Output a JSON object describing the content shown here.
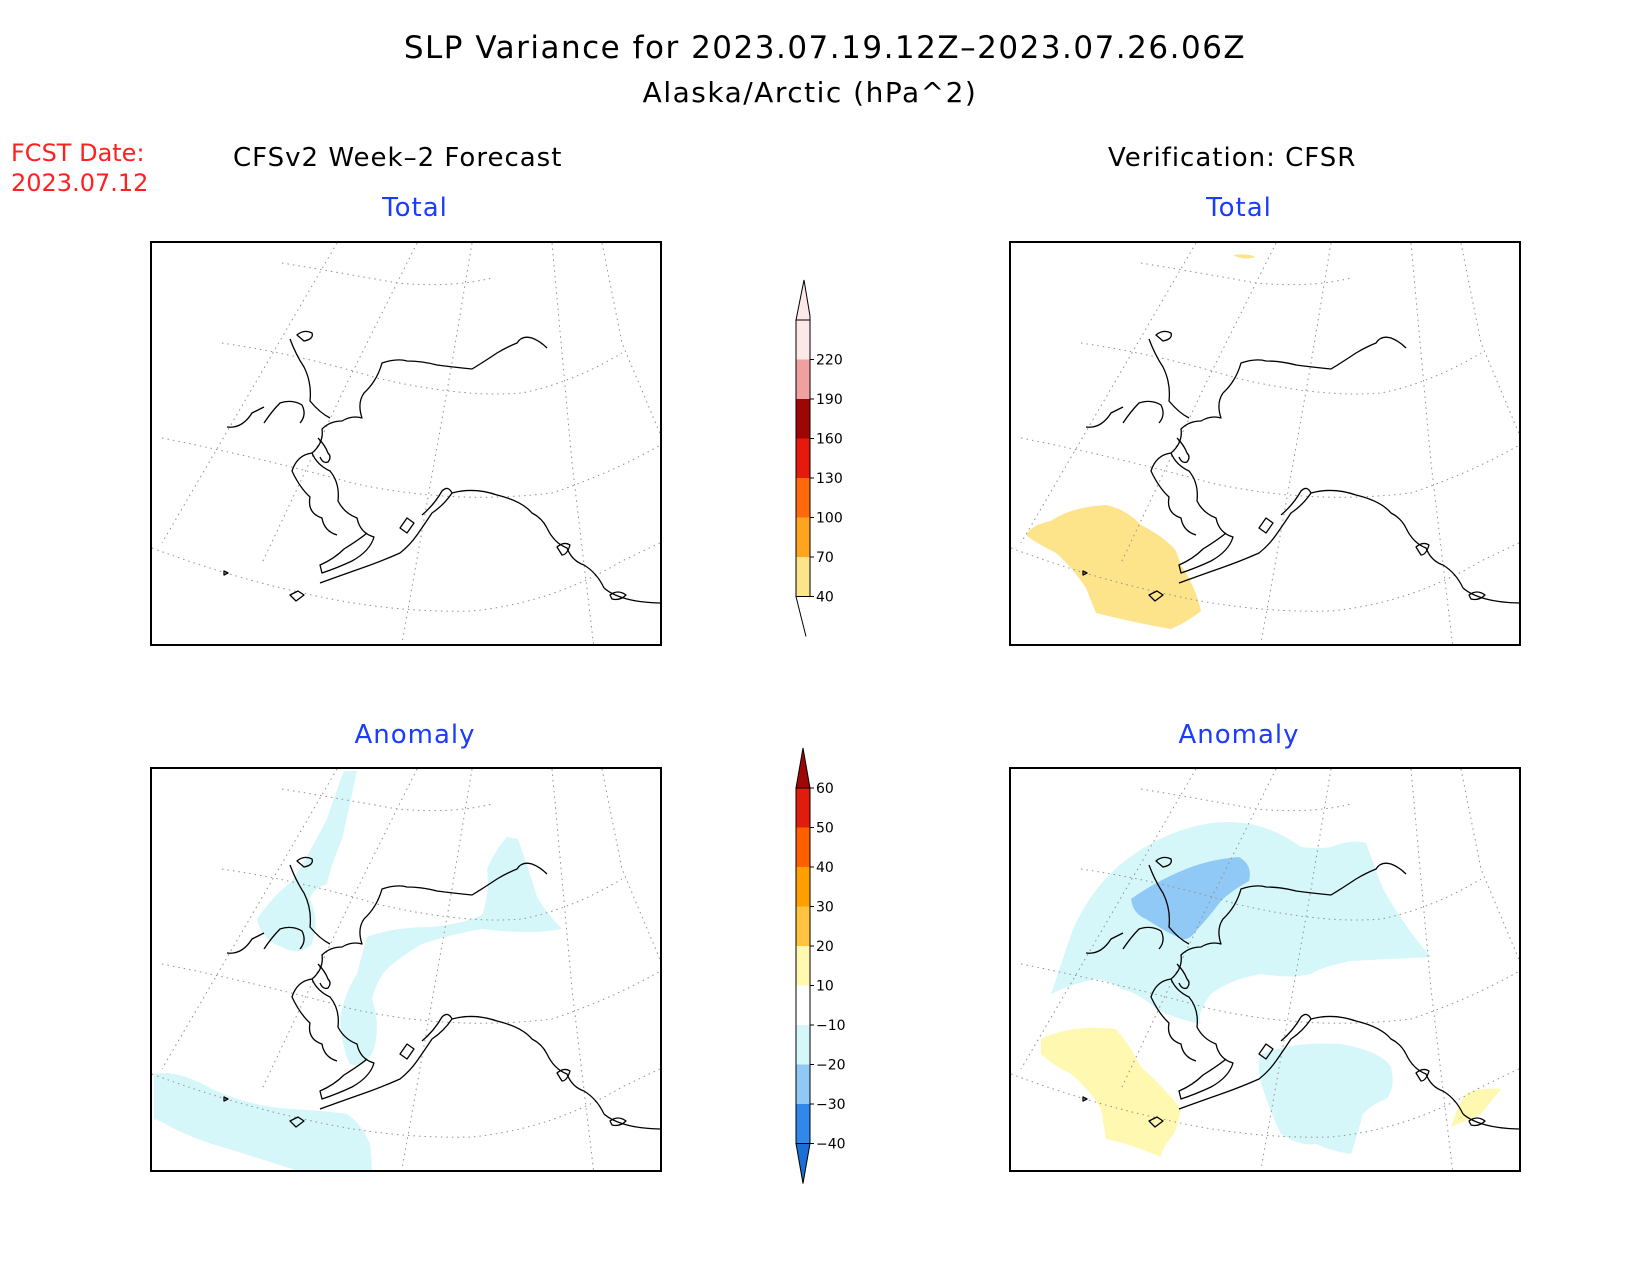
{
  "title": {
    "line1": "SLP Variance for 2023.07.19.12Z–2023.07.26.06Z",
    "line2": "Alaska/Arctic (hPa^2)"
  },
  "fcst": {
    "label": "FCST Date:",
    "date": "2023.07.12"
  },
  "columns": {
    "left": "CFSv2 Week–2 Forecast",
    "right": "Verification: CFSR"
  },
  "panels": {
    "forecast_total": "Total",
    "verification_total": "Total",
    "forecast_anomaly": "Anomaly",
    "verification_anomaly": "Anomaly"
  },
  "colorbars": {
    "total": {
      "levels": [
        "40",
        "70",
        "100",
        "130",
        "160",
        "190",
        "220"
      ],
      "colors": [
        "#fde38a",
        "#fea520",
        "#fe6a0a",
        "#e31a0c",
        "#9e0606",
        "#f0a0a0",
        "#fde8e8"
      ]
    },
    "anomaly": {
      "levels": [
        "−40",
        "−30",
        "−20",
        "−10",
        "10",
        "20",
        "30",
        "40",
        "50",
        "60"
      ],
      "colors": [
        "#1a6fd6",
        "#2f88ea",
        "#90c8f6",
        "#d6f7f9",
        "#ffffff",
        "#fff8b0",
        "#ffc340",
        "#ffa000",
        "#fe6000",
        "#e01c0c",
        "#a00808"
      ]
    }
  },
  "colors": {
    "forecast_label": "#ff2020",
    "panel_subtitle": "#1a3cff"
  }
}
